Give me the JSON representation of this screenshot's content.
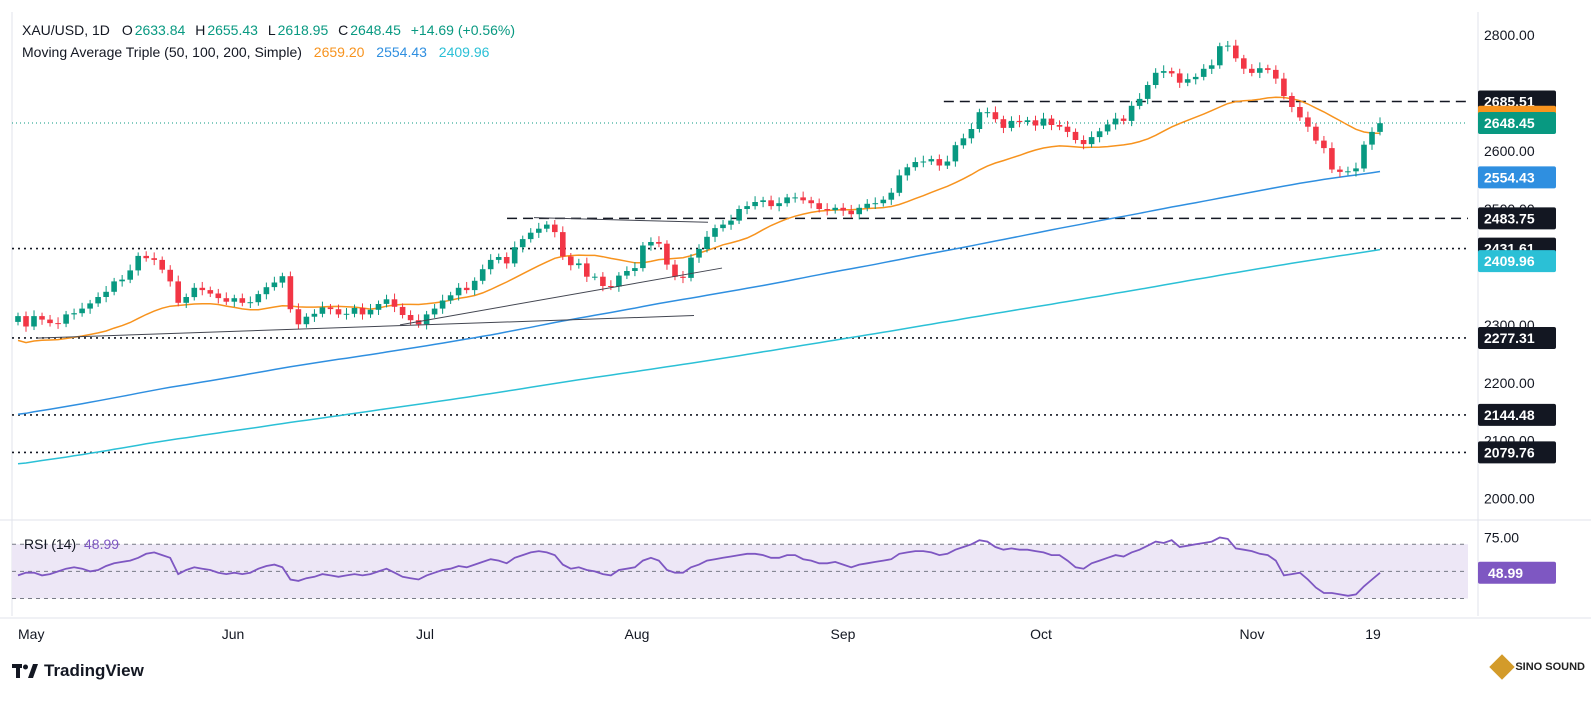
{
  "header": {
    "symbol": "XAU/USD, 1D",
    "open_label": "O",
    "open": "2633.84",
    "high_label": "H",
    "high": "2655.43",
    "low_label": "L",
    "low": "2618.95",
    "close_label": "C",
    "close": "2648.45",
    "change": "+14.69 (+0.56%)",
    "ma_label": "Moving Average Triple (50, 100, 200, Simple)",
    "ma50": "2659.20",
    "ma100": "2554.43",
    "ma200": "2409.96"
  },
  "rsi_legend": {
    "label": "RSI (14)",
    "value": "48.99"
  },
  "brand": {
    "name": "TradingView"
  },
  "watermark": {
    "text": "SINO SOUND"
  },
  "colors": {
    "up": "#089981",
    "down": "#f23645",
    "ma50": "#f7931e",
    "ma100": "#2f8fe0",
    "ma200": "#2bc0d6",
    "rsi": "#7e57c2",
    "rsi_band": "#ede7f6",
    "ink": "#131722"
  },
  "chart_data": [
    {
      "type": "candlestick",
      "title": "XAU/USD, 1D",
      "ylim": [
        1970,
        2840
      ],
      "y_ticks": [
        "2000.00",
        "2100.00",
        "2200.00",
        "2300.00",
        "2500.00",
        "2600.00",
        "2800.00"
      ],
      "x_ticks": [
        "May",
        "Jun",
        "Jul",
        "Aug",
        "Sep",
        "Oct",
        "Nov",
        "19"
      ],
      "price_labels": [
        {
          "value": "2685.51",
          "color": "#131722"
        },
        {
          "value": "2659.20",
          "color": "#f7931e"
        },
        {
          "value": "2648.45",
          "color": "#089981"
        },
        {
          "value": "2554.43",
          "color": "#2f8fe0"
        },
        {
          "value": "2483.75",
          "color": "#131722"
        },
        {
          "value": "2431.61",
          "color": "#131722"
        },
        {
          "value": "2409.96",
          "color": "#2bc0d6"
        },
        {
          "value": "2277.31",
          "color": "#131722"
        },
        {
          "value": "2144.48",
          "color": "#131722"
        },
        {
          "value": "2079.76",
          "color": "#131722"
        }
      ],
      "levels": [
        {
          "value": 2685.51,
          "style": "dashed",
          "from": 0.64
        },
        {
          "value": 2483.75,
          "style": "dashed",
          "from": 0.34
        },
        {
          "value": 2431.61,
          "style": "dotted",
          "from": 0
        },
        {
          "value": 2277.31,
          "style": "dotted",
          "from": 0
        },
        {
          "value": 2144.48,
          "style": "dotted",
          "from": 0
        },
        {
          "value": 2079.76,
          "style": "dotted",
          "from": 0
        }
      ],
      "current_price": 2648.45,
      "close_series": [
        2315,
        2297,
        2315,
        2309,
        2303,
        2302,
        2318,
        2320,
        2328,
        2337,
        2348,
        2357,
        2375,
        2378,
        2394,
        2419,
        2415,
        2412,
        2395,
        2375,
        2338,
        2348,
        2364,
        2360,
        2354,
        2346,
        2340,
        2346,
        2338,
        2339,
        2353,
        2365,
        2373,
        2384,
        2327,
        2301,
        2314,
        2319,
        2330,
        2327,
        2318,
        2319,
        2329,
        2318,
        2326,
        2336,
        2344,
        2331,
        2317,
        2308,
        2301,
        2318,
        2328,
        2342,
        2351,
        2364,
        2360,
        2376,
        2396,
        2412,
        2417,
        2406,
        2434,
        2448,
        2459,
        2466,
        2473,
        2460,
        2418,
        2403,
        2406,
        2383,
        2383,
        2367,
        2366,
        2385,
        2393,
        2398,
        2437,
        2443,
        2440,
        2404,
        2383,
        2381,
        2416,
        2431,
        2452,
        2467,
        2473,
        2480,
        2500,
        2505,
        2512,
        2515,
        2505,
        2510,
        2520,
        2520,
        2515,
        2510,
        2500,
        2498,
        2502,
        2497,
        2491,
        2502,
        2509,
        2510,
        2516,
        2528,
        2558,
        2572,
        2581,
        2582,
        2586,
        2575,
        2582,
        2610,
        2622,
        2638,
        2667,
        2667,
        2655,
        2640,
        2652,
        2650,
        2653,
        2644,
        2656,
        2645,
        2642,
        2633,
        2619,
        2612,
        2624,
        2634,
        2646,
        2656,
        2652,
        2678,
        2690,
        2714,
        2735,
        2738,
        2734,
        2718,
        2724,
        2728,
        2742,
        2748,
        2781,
        2782,
        2760,
        2742,
        2735,
        2743,
        2740,
        2725,
        2695,
        2676,
        2658,
        2642,
        2618,
        2605,
        2568,
        2564,
        2565,
        2570,
        2611,
        2633,
        2648
      ],
      "ma_series": [
        {
          "name": "MA 50",
          "color": "#f7931e",
          "from": 2222,
          "to": 2659.2
        },
        {
          "name": "MA 100",
          "color": "#2f8fe0",
          "from": 2131,
          "to": 2554.43
        },
        {
          "name": "MA 200",
          "color": "#2bc0d6",
          "from": 2038,
          "to": 2409.96
        }
      ]
    },
    {
      "type": "line",
      "title": "RSI (14)",
      "ylim": [
        20,
        85
      ],
      "y_ticks": [
        "75.00"
      ],
      "bands": [
        70,
        50,
        30
      ],
      "current_value": "48.99",
      "values": [
        47,
        49,
        49,
        47,
        48,
        50,
        52,
        53,
        52,
        50,
        51,
        54,
        56,
        57,
        58,
        60,
        63,
        64,
        62,
        60,
        48,
        51,
        53,
        52,
        51,
        49,
        48,
        49,
        48,
        49,
        52,
        54,
        55,
        53,
        44,
        43,
        45,
        46,
        48,
        47,
        46,
        47,
        48,
        47,
        48,
        50,
        52,
        49,
        46,
        45,
        44,
        47,
        49,
        51,
        52,
        54,
        53,
        55,
        57,
        59,
        58,
        56,
        60,
        62,
        64,
        65,
        64,
        62,
        55,
        52,
        53,
        51,
        50,
        48,
        47,
        51,
        52,
        53,
        58,
        60,
        58,
        51,
        49,
        49,
        53,
        55,
        58,
        59,
        60,
        61,
        62,
        63,
        63,
        62,
        60,
        60,
        62,
        62,
        59,
        58,
        56,
        56,
        57,
        55,
        53,
        55,
        56,
        57,
        58,
        59,
        63,
        64,
        65,
        65,
        64,
        62,
        63,
        66,
        68,
        70,
        73,
        72,
        68,
        66,
        67,
        66,
        66,
        65,
        64,
        62,
        62,
        58,
        53,
        52,
        56,
        58,
        60,
        62,
        61,
        64,
        66,
        69,
        72,
        71,
        73,
        68,
        69,
        70,
        71,
        72,
        75,
        74,
        67,
        66,
        65,
        63,
        62,
        58,
        47,
        48,
        49,
        44,
        38,
        34,
        34,
        33,
        32,
        33,
        39,
        44,
        48.99
      ]
    }
  ]
}
